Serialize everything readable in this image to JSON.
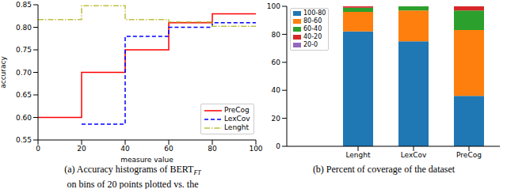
{
  "chart_data": [
    {
      "type": "step",
      "caption": [
        "(a) Accuracy histograms of BERT",
        "FT",
        "on bins of 20 points plotted vs.  the"
      ],
      "x_label": "measure value",
      "y_label": "accuracy",
      "x": [
        0,
        20,
        40,
        60,
        80,
        100
      ],
      "series": [
        {
          "name": "PreCog",
          "color": "#ff0000",
          "line_style": "solid",
          "values": [
            0.6,
            0.7,
            0.75,
            0.81,
            0.83,
            0.83
          ]
        },
        {
          "name": "LexCov",
          "color": "#0000ff",
          "line_style": "dashed",
          "values": [
            null,
            0.585,
            0.78,
            0.8,
            0.81,
            0.81
          ]
        },
        {
          "name": "Lenght",
          "color": "#bfbf40",
          "line_style": "dashdot",
          "values": [
            0.817,
            0.848,
            0.817,
            0.812,
            0.802,
            0.802
          ]
        }
      ],
      "xlim": [
        0,
        100
      ],
      "xticks": [
        0,
        20,
        40,
        60,
        80,
        100
      ],
      "ylim": [
        0.55,
        0.85
      ],
      "yticks": [
        0.55,
        {
          "value": 0.6,
          "label": "0.60"
        },
        0.65,
        {
          "value": 0.7,
          "label": "0.70"
        },
        0.75,
        {
          "value": 0.8,
          "label": "0.80"
        },
        0.85
      ],
      "legend": "lower right",
      "grid": false
    },
    {
      "type": "bar",
      "caption": [
        "(b) Percent of coverage of the dataset"
      ],
      "categories": [
        "Lenght",
        "LexCov",
        "PreCog"
      ],
      "series": [
        {
          "name": "100-80",
          "color": "#1f77b4",
          "values": [
            82,
            75,
            36
          ]
        },
        {
          "name": "80-60",
          "color": "#ff7f0e",
          "values": [
            14,
            22,
            47
          ]
        },
        {
          "name": "60-40",
          "color": "#2ca02c",
          "values": [
            3,
            3,
            14
          ]
        },
        {
          "name": "40-20",
          "color": "#d62728",
          "values": [
            1,
            0,
            3
          ]
        },
        {
          "name": "20-0",
          "color": "#9467bd",
          "values": [
            0,
            0,
            0
          ]
        }
      ],
      "ylim": [
        0,
        100
      ],
      "yticks": [
        0,
        20,
        40,
        60,
        80,
        100
      ],
      "stacked": true,
      "legend": "upper left",
      "grid": false
    }
  ]
}
